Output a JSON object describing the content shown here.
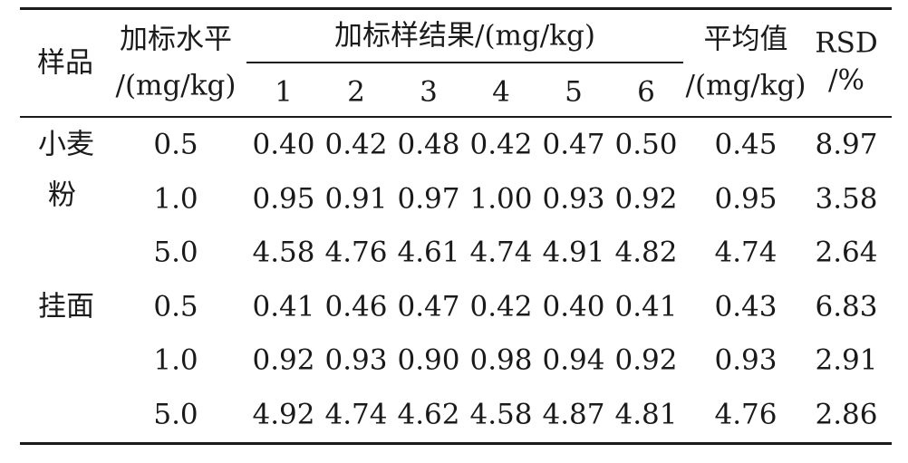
{
  "header": {
    "sample": "样品",
    "level_line1": "加标水平",
    "level_line2": "/(mg/kg)",
    "results_group": "加标样结果/(mg/kg)",
    "replicates": [
      "1",
      "2",
      "3",
      "4",
      "5",
      "6"
    ],
    "mean_line1": "平均值",
    "mean_line2": "/(mg/kg)",
    "rsd_line1": "RSD",
    "rsd_line2": "/%"
  },
  "groups": [
    {
      "sample_line1": "小麦",
      "sample_line2": "粉",
      "rows": [
        {
          "level": "0.5",
          "values": [
            "0.40",
            "0.42",
            "0.48",
            "0.42",
            "0.47",
            "0.50"
          ],
          "mean": "0.45",
          "rsd": "8.97"
        },
        {
          "level": "1.0",
          "values": [
            "0.95",
            "0.91",
            "0.97",
            "1.00",
            "0.93",
            "0.92"
          ],
          "mean": "0.95",
          "rsd": "3.58"
        },
        {
          "level": "5.0",
          "values": [
            "4.58",
            "4.76",
            "4.61",
            "4.74",
            "4.91",
            "4.82"
          ],
          "mean": "4.74",
          "rsd": "2.64"
        }
      ]
    },
    {
      "sample_line1": "挂面",
      "sample_line2": "",
      "rows": [
        {
          "level": "0.5",
          "values": [
            "0.41",
            "0.46",
            "0.47",
            "0.42",
            "0.40",
            "0.41"
          ],
          "mean": "0.43",
          "rsd": "6.83"
        },
        {
          "level": "1.0",
          "values": [
            "0.92",
            "0.93",
            "0.90",
            "0.98",
            "0.94",
            "0.92"
          ],
          "mean": "0.93",
          "rsd": "2.91"
        },
        {
          "level": "5.0",
          "values": [
            "4.92",
            "4.74",
            "4.62",
            "4.58",
            "4.87",
            "4.81"
          ],
          "mean": "4.76",
          "rsd": "2.86"
        }
      ]
    }
  ]
}
